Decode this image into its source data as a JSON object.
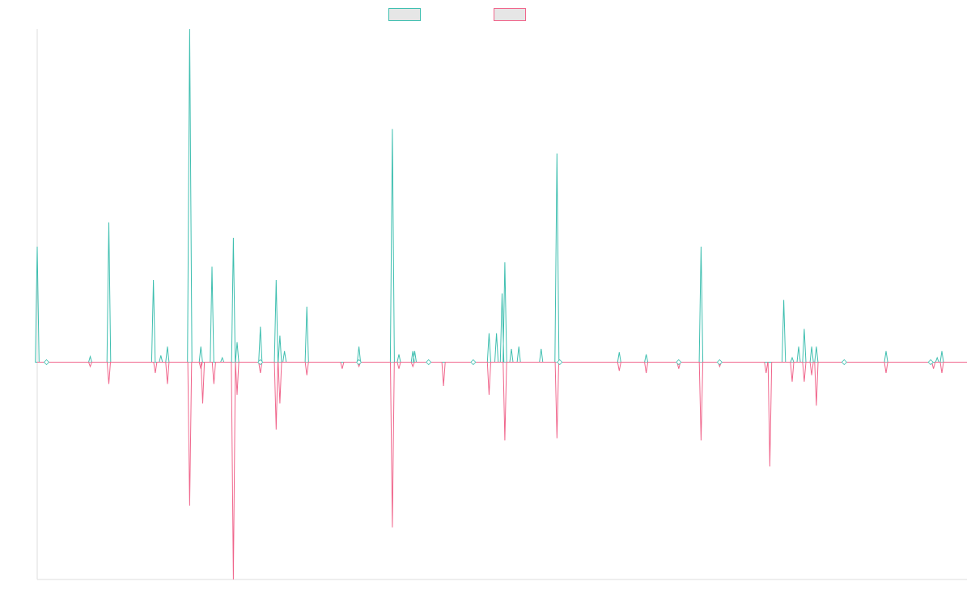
{
  "chart_data": {
    "type": "line",
    "title": "",
    "xlabel": "",
    "ylabel": "",
    "grid": false,
    "legend_position": "top-center",
    "colors": {
      "series1": "#3fbfb0",
      "series2": "#f0668c",
      "axis": "#dddddd"
    },
    "ylim": [
      -10,
      15
    ],
    "xlim": [
      0,
      1000
    ],
    "series": [
      {
        "name": "",
        "color": "#3fbfb0",
        "direction": "up",
        "spikes": [
          [
            0,
            5.2
          ],
          [
            10,
            0
          ],
          [
            57,
            0.25
          ],
          [
            77,
            6.3
          ],
          [
            125,
            3.7
          ],
          [
            133,
            0.3
          ],
          [
            140,
            0.7
          ],
          [
            164,
            15.0
          ],
          [
            176,
            0.7
          ],
          [
            188,
            4.3
          ],
          [
            199,
            0.2
          ],
          [
            211,
            5.6
          ],
          [
            215,
            0.9
          ],
          [
            225,
            0
          ],
          [
            240,
            0
          ],
          [
            240,
            1.6
          ],
          [
            257,
            3.7
          ],
          [
            261,
            1.2
          ],
          [
            266,
            0.5
          ],
          [
            290,
            2.5
          ],
          [
            328,
            0
          ],
          [
            346,
            0.7
          ],
          [
            358,
            0
          ],
          [
            382,
            10.5
          ],
          [
            389,
            0.35
          ],
          [
            404,
            0.5
          ],
          [
            406,
            0.5
          ],
          [
            421,
            0
          ],
          [
            469,
            0
          ],
          [
            486,
            1.3
          ],
          [
            494,
            1.3
          ],
          [
            500,
            3.1
          ],
          [
            503,
            4.5
          ],
          [
            510,
            0.6
          ],
          [
            518,
            0.7
          ],
          [
            542,
            0.6
          ],
          [
            559,
            9.4
          ],
          [
            562,
            0
          ],
          [
            626,
            0.45
          ],
          [
            655,
            0.35
          ],
          [
            690,
            0
          ],
          [
            714,
            5.2
          ],
          [
            734,
            0
          ],
          [
            788,
            0
          ],
          [
            803,
            2.8
          ],
          [
            812,
            0.2
          ],
          [
            819,
            0.7
          ],
          [
            825,
            1.5
          ],
          [
            833,
            0.7
          ],
          [
            838,
            0.7
          ],
          [
            868,
            0
          ],
          [
            913,
            0.5
          ],
          [
            961,
            0
          ],
          [
            968,
            0.2
          ],
          [
            973,
            0.5
          ]
        ]
      },
      {
        "name": "",
        "color": "#f0668c",
        "direction": "down",
        "spikes": [
          [
            57,
            0.2
          ],
          [
            77,
            1.0
          ],
          [
            127,
            0.5
          ],
          [
            140,
            1.0
          ],
          [
            164,
            6.6
          ],
          [
            176,
            0.3
          ],
          [
            178,
            1.9
          ],
          [
            190,
            1.0
          ],
          [
            211,
            10.0
          ],
          [
            215,
            1.5
          ],
          [
            240,
            0.5
          ],
          [
            257,
            3.1
          ],
          [
            261,
            1.9
          ],
          [
            290,
            0.6
          ],
          [
            328,
            0.3
          ],
          [
            346,
            0.2
          ],
          [
            382,
            7.6
          ],
          [
            389,
            0.3
          ],
          [
            404,
            0.2
          ],
          [
            437,
            1.1
          ],
          [
            486,
            1.5
          ],
          [
            503,
            3.6
          ],
          [
            559,
            3.5
          ],
          [
            626,
            0.4
          ],
          [
            655,
            0.5
          ],
          [
            690,
            0.3
          ],
          [
            714,
            3.6
          ],
          [
            734,
            0.2
          ],
          [
            784,
            0.5
          ],
          [
            788,
            4.8
          ],
          [
            812,
            0.9
          ],
          [
            825,
            0.9
          ],
          [
            833,
            0.6
          ],
          [
            838,
            2.0
          ],
          [
            913,
            0.5
          ],
          [
            964,
            0.3
          ],
          [
            973,
            0.5
          ]
        ]
      }
    ]
  }
}
